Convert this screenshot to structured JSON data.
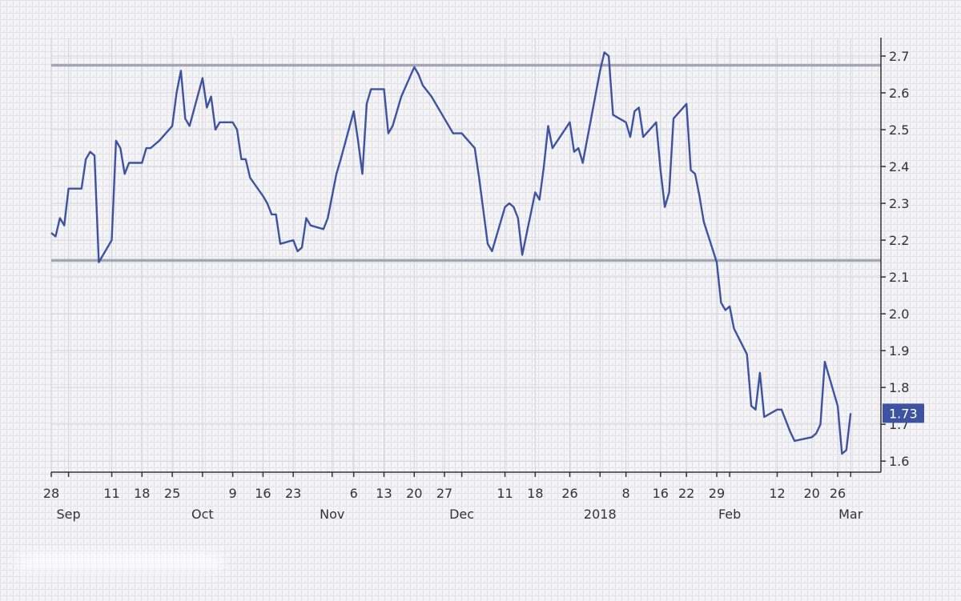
{
  "chart_data": {
    "type": "line",
    "title": "",
    "xlabel": "",
    "ylabel": "",
    "ylim": [
      1.57,
      2.75
    ],
    "y_ticks": [
      "1.6",
      "1.7",
      "1.8",
      "1.9",
      "2.0",
      "2.1",
      "2.2",
      "2.3",
      "2.4",
      "2.5",
      "2.6",
      "2.7"
    ],
    "x_tick_labels": [
      {
        "label": "28",
        "date": "2017-08-28"
      },
      {
        "label": "11",
        "date": "2017-09-11"
      },
      {
        "label": "18",
        "date": "2017-09-18"
      },
      {
        "label": "25",
        "date": "2017-09-25"
      },
      {
        "label": "9",
        "date": "2017-10-09"
      },
      {
        "label": "16",
        "date": "2017-10-16"
      },
      {
        "label": "23",
        "date": "2017-10-23"
      },
      {
        "label": "6",
        "date": "2017-11-06"
      },
      {
        "label": "13",
        "date": "2017-11-13"
      },
      {
        "label": "20",
        "date": "2017-11-20"
      },
      {
        "label": "27",
        "date": "2017-11-27"
      },
      {
        "label": "11",
        "date": "2017-12-11"
      },
      {
        "label": "18",
        "date": "2017-12-18"
      },
      {
        "label": "26",
        "date": "2017-12-26"
      },
      {
        "label": "8",
        "date": "2018-01-08"
      },
      {
        "label": "16",
        "date": "2018-01-16"
      },
      {
        "label": "22",
        "date": "2018-01-22"
      },
      {
        "label": "29",
        "date": "2018-01-29"
      },
      {
        "label": "12",
        "date": "2018-02-12"
      },
      {
        "label": "20",
        "date": "2018-02-20"
      },
      {
        "label": "26",
        "date": "2018-02-26"
      }
    ],
    "month_labels": [
      {
        "label": "Sep",
        "date": "2017-09-01"
      },
      {
        "label": "Oct",
        "date": "2017-10-02"
      },
      {
        "label": "Nov",
        "date": "2017-11-01"
      },
      {
        "label": "Dec",
        "date": "2017-12-01"
      },
      {
        "label": "2018",
        "date": "2018-01-02"
      },
      {
        "label": "Feb",
        "date": "2018-02-01"
      },
      {
        "label": "Mar",
        "date": "2018-03-01"
      }
    ],
    "x_range": [
      "2017-08-28",
      "2018-03-08"
    ],
    "grid": true,
    "legend": "none",
    "colors": {
      "line": "#3d52a0",
      "reference": "#a4a6b6",
      "label_bg": "#3d52a0",
      "axis": "#333333"
    },
    "reference_lines": [
      2.675,
      2.145
    ],
    "last_value_label": "1.73",
    "series": [
      {
        "points": [
          [
            "2017-08-28",
            2.22
          ],
          [
            "2017-08-29",
            2.21
          ],
          [
            "2017-08-30",
            2.26
          ],
          [
            "2017-08-31",
            2.24
          ],
          [
            "2017-09-01",
            2.34
          ],
          [
            "2017-09-04",
            2.34
          ],
          [
            "2017-09-05",
            2.42
          ],
          [
            "2017-09-06",
            2.44
          ],
          [
            "2017-09-07",
            2.43
          ],
          [
            "2017-09-08",
            2.14
          ],
          [
            "2017-09-11",
            2.2
          ],
          [
            "2017-09-12",
            2.47
          ],
          [
            "2017-09-13",
            2.45
          ],
          [
            "2017-09-14",
            2.38
          ],
          [
            "2017-09-15",
            2.41
          ],
          [
            "2017-09-18",
            2.41
          ],
          [
            "2017-09-19",
            2.45
          ],
          [
            "2017-09-20",
            2.45
          ],
          [
            "2017-09-21",
            2.46
          ],
          [
            "2017-09-22",
            2.47
          ],
          [
            "2017-09-25",
            2.51
          ],
          [
            "2017-09-26",
            2.6
          ],
          [
            "2017-09-27",
            2.66
          ],
          [
            "2017-09-28",
            2.53
          ],
          [
            "2017-09-29",
            2.51
          ],
          [
            "2017-10-02",
            2.64
          ],
          [
            "2017-10-03",
            2.56
          ],
          [
            "2017-10-04",
            2.59
          ],
          [
            "2017-10-05",
            2.5
          ],
          [
            "2017-10-06",
            2.52
          ],
          [
            "2017-10-09",
            2.52
          ],
          [
            "2017-10-10",
            2.5
          ],
          [
            "2017-10-11",
            2.42
          ],
          [
            "2017-10-12",
            2.42
          ],
          [
            "2017-10-13",
            2.37
          ],
          [
            "2017-10-16",
            2.32
          ],
          [
            "2017-10-17",
            2.3
          ],
          [
            "2017-10-18",
            2.27
          ],
          [
            "2017-10-19",
            2.27
          ],
          [
            "2017-10-20",
            2.19
          ],
          [
            "2017-10-23",
            2.2
          ],
          [
            "2017-10-24",
            2.17
          ],
          [
            "2017-10-25",
            2.18
          ],
          [
            "2017-10-26",
            2.26
          ],
          [
            "2017-10-27",
            2.24
          ],
          [
            "2017-10-30",
            2.23
          ],
          [
            "2017-10-31",
            2.26
          ],
          [
            "2017-11-01",
            2.32
          ],
          [
            "2017-11-02",
            2.38
          ],
          [
            "2017-11-03",
            2.42
          ],
          [
            "2017-11-06",
            2.55
          ],
          [
            "2017-11-07",
            2.47
          ],
          [
            "2017-11-08",
            2.38
          ],
          [
            "2017-11-09",
            2.57
          ],
          [
            "2017-11-10",
            2.61
          ],
          [
            "2017-11-13",
            2.61
          ],
          [
            "2017-11-14",
            2.49
          ],
          [
            "2017-11-15",
            2.51
          ],
          [
            "2017-11-16",
            2.55
          ],
          [
            "2017-11-17",
            2.59
          ],
          [
            "2017-11-20",
            2.67
          ],
          [
            "2017-11-21",
            2.65
          ],
          [
            "2017-11-22",
            2.62
          ],
          [
            "2017-11-24",
            2.59
          ],
          [
            "2017-11-27",
            2.53
          ],
          [
            "2017-11-28",
            2.51
          ],
          [
            "2017-11-29",
            2.49
          ],
          [
            "2017-11-30",
            2.49
          ],
          [
            "2017-12-01",
            2.49
          ],
          [
            "2017-12-04",
            2.45
          ],
          [
            "2017-12-05",
            2.37
          ],
          [
            "2017-12-06",
            2.28
          ],
          [
            "2017-12-07",
            2.19
          ],
          [
            "2017-12-08",
            2.17
          ],
          [
            "2017-12-11",
            2.29
          ],
          [
            "2017-12-12",
            2.3
          ],
          [
            "2017-12-13",
            2.29
          ],
          [
            "2017-12-14",
            2.26
          ],
          [
            "2017-12-15",
            2.16
          ],
          [
            "2017-12-18",
            2.33
          ],
          [
            "2017-12-19",
            2.31
          ],
          [
            "2017-12-20",
            2.4
          ],
          [
            "2017-12-21",
            2.51
          ],
          [
            "2017-12-22",
            2.45
          ],
          [
            "2017-12-26",
            2.52
          ],
          [
            "2017-12-27",
            2.44
          ],
          [
            "2017-12-28",
            2.45
          ],
          [
            "2017-12-29",
            2.41
          ],
          [
            "2018-01-02",
            2.66
          ],
          [
            "2018-01-03",
            2.71
          ],
          [
            "2018-01-04",
            2.7
          ],
          [
            "2018-01-05",
            2.54
          ],
          [
            "2018-01-08",
            2.52
          ],
          [
            "2018-01-09",
            2.48
          ],
          [
            "2018-01-10",
            2.55
          ],
          [
            "2018-01-11",
            2.56
          ],
          [
            "2018-01-12",
            2.48
          ],
          [
            "2018-01-15",
            2.52
          ],
          [
            "2018-01-16",
            2.39
          ],
          [
            "2018-01-17",
            2.29
          ],
          [
            "2018-01-18",
            2.33
          ],
          [
            "2018-01-19",
            2.53
          ],
          [
            "2018-01-22",
            2.57
          ],
          [
            "2018-01-23",
            2.39
          ],
          [
            "2018-01-24",
            2.38
          ],
          [
            "2018-01-25",
            2.32
          ],
          [
            "2018-01-26",
            2.25
          ],
          [
            "2018-01-29",
            2.14
          ],
          [
            "2018-01-30",
            2.03
          ],
          [
            "2018-01-31",
            2.01
          ],
          [
            "2018-02-01",
            2.02
          ],
          [
            "2018-02-02",
            1.96
          ],
          [
            "2018-02-05",
            1.89
          ],
          [
            "2018-02-06",
            1.75
          ],
          [
            "2018-02-07",
            1.74
          ],
          [
            "2018-02-08",
            1.84
          ],
          [
            "2018-02-09",
            1.72
          ],
          [
            "2018-02-12",
            1.74
          ],
          [
            "2018-02-13",
            1.74
          ],
          [
            "2018-02-14",
            1.71
          ],
          [
            "2018-02-15",
            1.68
          ],
          [
            "2018-02-16",
            1.655
          ],
          [
            "2018-02-20",
            1.665
          ],
          [
            "2018-02-21",
            1.675
          ],
          [
            "2018-02-22",
            1.7
          ],
          [
            "2018-02-23",
            1.87
          ],
          [
            "2018-02-26",
            1.75
          ],
          [
            "2018-02-27",
            1.62
          ],
          [
            "2018-02-28",
            1.63
          ],
          [
            "2018-03-01",
            1.73
          ]
        ]
      }
    ]
  }
}
